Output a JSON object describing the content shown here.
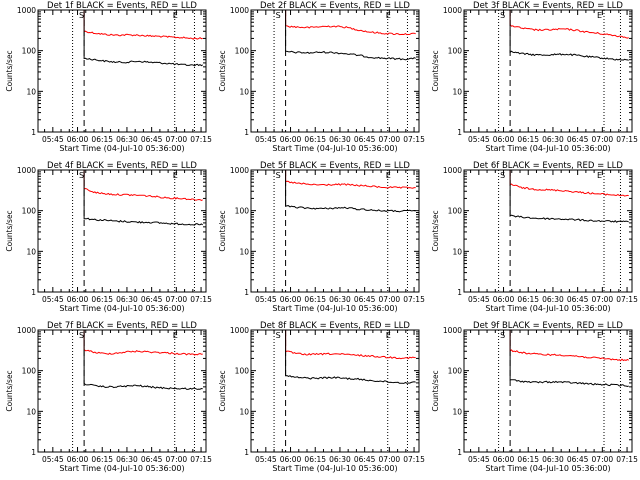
{
  "page": {
    "background": "#ffffff",
    "colors": {
      "events": "#000000",
      "lld": "#ff0000",
      "axes": "#000000"
    }
  },
  "chart_data": [
    {
      "type": "line",
      "title": "Det 1f BLACK = Events, RED = LLD",
      "xlabel": "Start Time (04-Jul-10 05:36:00)",
      "ylabel": "Counts/sec",
      "xlim": [
        "05:36",
        "07:18"
      ],
      "ylim": [
        1,
        1000
      ],
      "yscale": "log",
      "xticks": [
        "05:45",
        "06:00",
        "06:15",
        "06:30",
        "06:45",
        "07:00",
        "07:15"
      ],
      "yticks": [
        "1",
        "10",
        "100",
        "1000"
      ],
      "markers": {
        "S": "06:07",
        "E": "06:59"
      },
      "dashed_line": "06:04",
      "dotted_lines": [
        "05:57",
        "06:59",
        "07:11"
      ],
      "series": [
        {
          "start": "06:04",
          "values": [
            300,
            270,
            250,
            240,
            245,
            240,
            230,
            225,
            215,
            210,
            200,
            200
          ]
        },
        {
          "start": "06:04",
          "values": [
            65,
            60,
            55,
            52,
            52,
            55,
            52,
            50,
            48,
            45,
            44,
            45
          ]
        }
      ]
    },
    {
      "type": "line",
      "title": "Det 2f BLACK = Events, RED = LLD",
      "xlabel": "Start Time (04-Jul-10 05:36:00)",
      "ylabel": "Counts/sec",
      "xlim": [
        "05:36",
        "07:18"
      ],
      "ylim": [
        1,
        1000
      ],
      "yscale": "log",
      "xticks": [
        "05:45",
        "06:00",
        "06:15",
        "06:30",
        "06:45",
        "07:00",
        "07:15"
      ],
      "yticks": [
        "1",
        "10",
        "100",
        "1000"
      ],
      "markers": {
        "S": "05:57",
        "E": "06:59"
      },
      "dashed_line": "05:57",
      "dotted_lines": [
        "05:50",
        "06:59",
        "07:11"
      ],
      "series": [
        {
          "start": "05:57",
          "values": [
            400,
            380,
            370,
            390,
            400,
            380,
            330,
            290,
            270,
            260,
            255,
            260
          ]
        },
        {
          "start": "05:57",
          "values": [
            95,
            90,
            88,
            92,
            90,
            85,
            78,
            70,
            66,
            64,
            62,
            65
          ]
        }
      ]
    },
    {
      "type": "line",
      "title": "Det 3f BLACK = Events, RED = LLD",
      "xlabel": "Start Time (04-Jul-10 05:36:00)",
      "ylabel": "Counts/sec",
      "xlim": [
        "05:36",
        "07:18"
      ],
      "ylim": [
        1,
        1000
      ],
      "yscale": "log",
      "xticks": [
        "05:45",
        "06:00",
        "06:15",
        "06:30",
        "06:45",
        "07:00",
        "07:15"
      ],
      "yticks": [
        "1",
        "10",
        "100",
        "1000"
      ],
      "markers": {
        "S": "06:04",
        "E": "06:58"
      },
      "dashed_line": "06:04",
      "dotted_lines": [
        "05:57",
        "07:01",
        "07:11"
      ],
      "series": [
        {
          "start": "06:04",
          "values": [
            420,
            360,
            330,
            320,
            330,
            340,
            320,
            290,
            270,
            250,
            230,
            210
          ]
        },
        {
          "start": "06:04",
          "values": [
            95,
            85,
            80,
            78,
            80,
            82,
            78,
            72,
            68,
            64,
            60,
            58
          ]
        }
      ]
    },
    {
      "type": "line",
      "title": "Det 4f BLACK = Events, RED = LLD",
      "xlabel": "Start Time (04-Jul-10 05:36:00)",
      "ylabel": "Counts/sec",
      "xlim": [
        "05:36",
        "07:18"
      ],
      "ylim": [
        1,
        1000
      ],
      "yscale": "log",
      "xticks": [
        "05:45",
        "06:00",
        "06:15",
        "06:30",
        "06:45",
        "07:00",
        "07:15"
      ],
      "yticks": [
        "1",
        "10",
        "100",
        "1000"
      ],
      "markers": {
        "S": "06:07",
        "E": "06:59"
      },
      "dashed_line": "06:04",
      "dotted_lines": [
        "05:57",
        "06:59",
        "07:11"
      ],
      "series": [
        {
          "start": "06:04",
          "values": [
            350,
            280,
            260,
            250,
            245,
            240,
            230,
            215,
            205,
            200,
            190,
            185
          ]
        },
        {
          "start": "06:04",
          "values": [
            65,
            60,
            58,
            55,
            54,
            52,
            52,
            50,
            48,
            47,
            46,
            45
          ]
        }
      ]
    },
    {
      "type": "line",
      "title": "Det 5f BLACK = Events, RED = LLD",
      "xlabel": "Start Time (04-Jul-10 05:36:00)",
      "ylabel": "Counts/sec",
      "xlim": [
        "05:36",
        "07:18"
      ],
      "ylim": [
        1,
        1000
      ],
      "yscale": "log",
      "xticks": [
        "05:45",
        "06:00",
        "06:15",
        "06:30",
        "06:45",
        "07:00",
        "07:15"
      ],
      "yticks": [
        "1",
        "10",
        "100",
        "1000"
      ],
      "markers": {
        "S": "05:57",
        "E": "06:59"
      },
      "dashed_line": "05:57",
      "dotted_lines": [
        "05:50",
        "06:59",
        "07:11"
      ],
      "series": [
        {
          "start": "05:57",
          "values": [
            520,
            470,
            440,
            430,
            435,
            440,
            420,
            400,
            380,
            370,
            365,
            370
          ]
        },
        {
          "start": "05:57",
          "values": [
            130,
            120,
            115,
            112,
            115,
            118,
            110,
            105,
            100,
            98,
            97,
            100
          ]
        }
      ]
    },
    {
      "type": "line",
      "title": "Det 6f BLACK = Events, RED = LLD",
      "xlabel": "Start Time (04-Jul-10 05:36:00)",
      "ylabel": "Counts/sec",
      "xlim": [
        "05:36",
        "07:18"
      ],
      "ylim": [
        1,
        1000
      ],
      "yscale": "log",
      "xticks": [
        "05:45",
        "06:00",
        "06:15",
        "06:30",
        "06:45",
        "07:00",
        "07:15"
      ],
      "yticks": [
        "1",
        "10",
        "100",
        "1000"
      ],
      "markers": {
        "S": "06:04",
        "E": "06:58"
      },
      "dashed_line": "06:04",
      "dotted_lines": [
        "05:57",
        "07:01",
        "07:11"
      ],
      "series": [
        {
          "start": "06:04",
          "values": [
            450,
            370,
            340,
            330,
            320,
            310,
            290,
            275,
            260,
            250,
            240,
            235
          ]
        },
        {
          "start": "06:04",
          "values": [
            75,
            70,
            66,
            64,
            63,
            62,
            60,
            58,
            56,
            55,
            54,
            53
          ]
        }
      ]
    },
    {
      "type": "line",
      "title": "Det 7f BLACK = Events, RED = LLD",
      "xlabel": "Start Time (04-Jul-10 05:36:00)",
      "ylabel": "Counts/sec",
      "xlim": [
        "05:36",
        "07:18"
      ],
      "ylim": [
        1,
        1000
      ],
      "yscale": "log",
      "xticks": [
        "05:45",
        "06:00",
        "06:15",
        "06:30",
        "06:45",
        "07:00",
        "07:15"
      ],
      "yticks": [
        "1",
        "10",
        "100",
        "1000"
      ],
      "markers": {
        "S": "06:07",
        "E": "06:59"
      },
      "dashed_line": "06:04",
      "dotted_lines": [
        "05:57",
        "06:59",
        "07:11"
      ],
      "series": [
        {
          "start": "06:04",
          "values": [
            330,
            280,
            260,
            270,
            290,
            300,
            290,
            280,
            270,
            260,
            250,
            255
          ]
        },
        {
          "start": "06:04",
          "values": [
            48,
            42,
            40,
            40,
            42,
            43,
            40,
            38,
            37,
            36,
            36,
            36
          ]
        }
      ]
    },
    {
      "type": "line",
      "title": "Det 8f BLACK = Events, RED = LLD",
      "xlabel": "Start Time (04-Jul-10 05:36:00)",
      "ylabel": "Counts/sec",
      "xlim": [
        "05:36",
        "07:18"
      ],
      "ylim": [
        1,
        1000
      ],
      "yscale": "log",
      "xticks": [
        "05:45",
        "06:00",
        "06:15",
        "06:30",
        "06:45",
        "07:00",
        "07:15"
      ],
      "yticks": [
        "1",
        "10",
        "100",
        "1000"
      ],
      "markers": {
        "S": "05:57",
        "E": "06:59"
      },
      "dashed_line": "05:57",
      "dotted_lines": [
        "05:50",
        "06:59",
        "07:11"
      ],
      "series": [
        {
          "start": "05:57",
          "values": [
            300,
            260,
            250,
            255,
            260,
            250,
            240,
            230,
            220,
            210,
            205,
            210
          ]
        },
        {
          "start": "05:57",
          "values": [
            75,
            68,
            65,
            66,
            68,
            65,
            62,
            58,
            55,
            52,
            50,
            52
          ]
        }
      ]
    },
    {
      "type": "line",
      "title": "Det 9f BLACK = Events, RED = LLD",
      "xlabel": "Start Time (04-Jul-10 05:36:00)",
      "ylabel": "Counts/sec",
      "xlim": [
        "05:36",
        "07:18"
      ],
      "ylim": [
        1,
        1000
      ],
      "yscale": "log",
      "xticks": [
        "05:45",
        "06:00",
        "06:15",
        "06:30",
        "06:45",
        "07:00",
        "07:15"
      ],
      "yticks": [
        "1",
        "10",
        "100",
        "1000"
      ],
      "markers": {
        "S": "06:04",
        "E": "06:58"
      },
      "dashed_line": "06:04",
      "dotted_lines": [
        "05:57",
        "07:01",
        "07:11"
      ],
      "series": [
        {
          "start": "06:04",
          "values": [
            320,
            280,
            260,
            250,
            245,
            240,
            230,
            215,
            205,
            195,
            185,
            180
          ]
        },
        {
          "start": "06:04",
          "values": [
            60,
            55,
            52,
            52,
            53,
            52,
            50,
            48,
            46,
            45,
            44,
            42
          ]
        }
      ]
    }
  ]
}
